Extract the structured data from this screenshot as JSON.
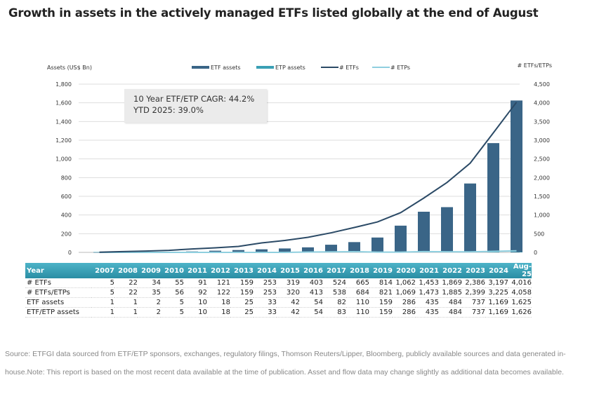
{
  "title": "Growth in assets in the actively managed ETFs listed globally at the end of August",
  "annotation": {
    "line1": "10 Year ETF/ETP CAGR: 44.2%",
    "line2": "YTD 2025: 39.0%"
  },
  "colors": {
    "etf_assets": "#3a6587",
    "etp_assets": "#3aa0b5",
    "etfs_line": "#2b4a66",
    "etps_line": "#8fcfdf",
    "table_header": "#3aa0b5"
  },
  "chart_data": {
    "type": "bar",
    "title": "Growth in assets in the actively managed ETFs listed globally at the end of August",
    "categories": [
      "2007",
      "2008",
      "2009",
      "2010",
      "2011",
      "2012",
      "2013",
      "2014",
      "2015",
      "2016",
      "2017",
      "2018",
      "2019",
      "2020",
      "2021",
      "2022",
      "2023",
      "2024",
      "Aug-25"
    ],
    "ylabel": "Assets (US$ Bn)",
    "y2label": "# ETFs/ETPs",
    "ylim": [
      0,
      1800
    ],
    "y2lim": [
      0,
      4500
    ],
    "yticks": [
      "0",
      "200",
      "400",
      "600",
      "800",
      "1,000",
      "1,200",
      "1,400",
      "1,600",
      "1,800"
    ],
    "y2ticks": [
      "0",
      "500",
      "1,000",
      "1,500",
      "2,000",
      "2,500",
      "3,000",
      "3,500",
      "4,000",
      "4,500"
    ],
    "grid": true,
    "legend_position": "top",
    "series": [
      {
        "name": "ETF assets",
        "type": "bar",
        "axis": "left",
        "values": [
          1,
          1,
          2,
          5,
          10,
          18,
          25,
          33,
          42,
          54,
          82,
          110,
          159,
          286,
          435,
          484,
          737,
          1169,
          1625
        ]
      },
      {
        "name": "ETP assets",
        "type": "bar",
        "axis": "left",
        "values": [
          0,
          0,
          0,
          0,
          0,
          0,
          0,
          0,
          0,
          0,
          1,
          0,
          0,
          0,
          0,
          0,
          0,
          0,
          1
        ]
      },
      {
        "name": "# ETFs",
        "type": "line",
        "axis": "right",
        "values": [
          5,
          22,
          34,
          55,
          91,
          121,
          159,
          253,
          319,
          403,
          524,
          665,
          814,
          1062,
          1453,
          1869,
          2386,
          3197,
          4016
        ]
      },
      {
        "name": "# ETPs",
        "type": "line",
        "axis": "right",
        "values": [
          0,
          0,
          1,
          1,
          1,
          1,
          0,
          0,
          1,
          10,
          14,
          19,
          7,
          7,
          20,
          16,
          13,
          28,
          42
        ]
      }
    ],
    "table": {
      "header": "Year",
      "rows": [
        {
          "label": "# ETFs",
          "values": [
            "5",
            "22",
            "34",
            "55",
            "91",
            "121",
            "159",
            "253",
            "319",
            "403",
            "524",
            "665",
            "814",
            "1,062",
            "1,453",
            "1,869",
            "2,386",
            "3,197",
            "4,016"
          ]
        },
        {
          "label": "# ETFs/ETPs",
          "values": [
            "5",
            "22",
            "35",
            "56",
            "92",
            "122",
            "159",
            "253",
            "320",
            "413",
            "538",
            "684",
            "821",
            "1,069",
            "1,473",
            "1,885",
            "2,399",
            "3,225",
            "4,058"
          ]
        },
        {
          "label": "ETF assets",
          "values": [
            "1",
            "1",
            "2",
            "5",
            "10",
            "18",
            "25",
            "33",
            "42",
            "54",
            "82",
            "110",
            "159",
            "286",
            "435",
            "484",
            "737",
            "1,169",
            "1,625"
          ]
        },
        {
          "label": "ETF/ETP assets",
          "values": [
            "1",
            "1",
            "2",
            "5",
            "10",
            "18",
            "25",
            "33",
            "42",
            "54",
            "83",
            "110",
            "159",
            "286",
            "435",
            "484",
            "737",
            "1,169",
            "1,626"
          ]
        }
      ]
    }
  },
  "source": "Source: ETFGI data sourced from ETF/ETP sponsors, exchanges, regulatory filings, Thomson Reuters/Lipper, Bloomberg, publicly available sources and data generated in-house.Note: This report is based on the most recent data available at the time of publication. Asset and flow data may change slightly as additional data becomes available."
}
